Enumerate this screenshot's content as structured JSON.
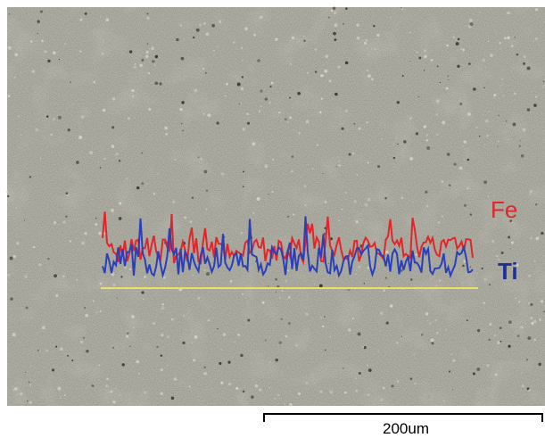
{
  "image": {
    "labels": {
      "fe": "Fe",
      "ti": "Ti"
    }
  },
  "scale_bar": {
    "label": "200um"
  }
}
